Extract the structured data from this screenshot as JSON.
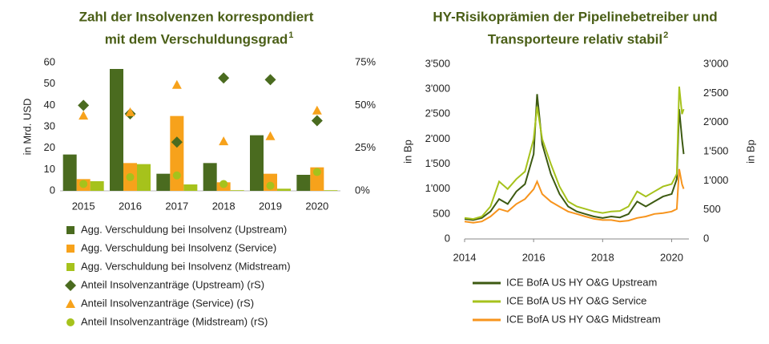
{
  "chart_data": [
    {
      "type": "bar",
      "title": [
        "Zahl der Insolvenzen korrespondiert",
        "mit dem Verschuldungsgrad"
      ],
      "title_footnote": "1",
      "ylabel": "in Mrd. USD",
      "categories": [
        "2015",
        "2016",
        "2017",
        "2018",
        "2019",
        "2020"
      ],
      "ylim": [
        0,
        60
      ],
      "yticks": [
        0,
        10,
        20,
        30,
        40,
        50,
        60
      ],
      "y2lim": [
        0,
        75
      ],
      "y2ticks": [
        {
          "value": 0,
          "label": "0%"
        },
        {
          "value": 25,
          "label": "25%"
        },
        {
          "value": 50,
          "label": "50%"
        },
        {
          "value": 75,
          "label": "75%"
        }
      ],
      "series": [
        {
          "name": "Agg. Verschuldung bei Insolvenz (Upstream)",
          "kind": "bar",
          "marker": "square",
          "color": "#4a6b1f",
          "values": [
            17,
            57,
            8,
            13,
            26,
            7.5
          ]
        },
        {
          "name": "Agg. Verschuldung bei Insolvenz (Service)",
          "kind": "bar",
          "marker": "square",
          "color": "#f7a21b",
          "values": [
            5.5,
            13,
            35,
            4,
            8,
            11
          ]
        },
        {
          "name": "Agg. Verschuldung bei Insolvenz (Midstream)",
          "kind": "bar",
          "marker": "square",
          "color": "#a6c21c",
          "values": [
            4.5,
            12.5,
            3,
            0.3,
            1,
            0.3
          ]
        },
        {
          "name": "Anteil Insolvenzanträge (Upstream) (rS)",
          "kind": "scatter",
          "marker": "diamond",
          "axis": "y2",
          "color": "#4a6b1f",
          "values": [
            50,
            45,
            28.5,
            66,
            65,
            41
          ]
        },
        {
          "name": "Anteil Insolvenzanträge (Service) (rS)",
          "kind": "scatter",
          "marker": "triangle",
          "axis": "y2",
          "color": "#f7a21b",
          "values": [
            44,
            46,
            62,
            29,
            32,
            47
          ]
        },
        {
          "name": "Anteil Insolvenzanträge (Midstream) (rS)",
          "kind": "scatter",
          "marker": "circle",
          "axis": "y2",
          "color": "#a6c21c",
          "values": [
            4,
            8,
            9,
            4,
            3,
            11
          ]
        }
      ]
    },
    {
      "type": "line",
      "title": [
        "HY-Risikoprämien der Pipelinebetreiber und",
        "Transporteure relativ stabil"
      ],
      "title_footnote": "2",
      "ylabel": "in Bp",
      "y2label": "in Bp",
      "xlim": [
        2014,
        2020.5
      ],
      "xticks": [
        2014,
        2016,
        2018,
        2020
      ],
      "ylim": [
        0,
        3500
      ],
      "yticks": [
        0,
        500,
        {
          "value": 1000,
          "label": "1'000"
        },
        {
          "value": 1500,
          "label": "1'500"
        },
        {
          "value": 2000,
          "label": "2'000"
        },
        {
          "value": 2500,
          "label": "2'500"
        },
        {
          "value": 3000,
          "label": "3'000"
        },
        {
          "value": 3500,
          "label": "3'500"
        }
      ],
      "y2lim": [
        0,
        3000
      ],
      "y2ticks": [
        0,
        500,
        {
          "value": 1000,
          "label": "1'000"
        },
        {
          "value": 1500,
          "label": "1'500"
        },
        {
          "value": 2000,
          "label": "2'000"
        },
        {
          "value": 2500,
          "label": "2'500"
        },
        {
          "value": 3000,
          "label": "3'000"
        }
      ],
      "x": [
        2014,
        2014.25,
        2014.5,
        2014.75,
        2015,
        2015.25,
        2015.5,
        2015.75,
        2016,
        2016.1,
        2016.25,
        2016.5,
        2016.75,
        2017,
        2017.25,
        2017.5,
        2017.75,
        2018,
        2018.25,
        2018.5,
        2018.75,
        2019,
        2019.25,
        2019.5,
        2019.75,
        2020,
        2020.15,
        2020.22,
        2020.3,
        2020.35
      ],
      "series": [
        {
          "name": "ICE BofA US HY O&G Upstream",
          "color": "#3d5a12",
          "values": [
            400,
            380,
            420,
            550,
            800,
            700,
            950,
            1100,
            1700,
            2900,
            1900,
            1300,
            900,
            650,
            550,
            500,
            450,
            420,
            450,
            430,
            500,
            750,
            650,
            750,
            850,
            900,
            1200,
            2600,
            2000,
            1700
          ]
        },
        {
          "name": "ICE BofA US HY O&G Service",
          "color": "#a6c21c",
          "values": [
            420,
            400,
            450,
            650,
            1150,
            1000,
            1200,
            1350,
            2000,
            2650,
            2000,
            1500,
            1050,
            750,
            650,
            600,
            550,
            520,
            550,
            560,
            650,
            950,
            850,
            950,
            1050,
            1100,
            1300,
            3050,
            2500,
            2600
          ]
        },
        {
          "name": "ICE BofA US HY O&G Midstream",
          "color": "#f7941d",
          "axis": "y2",
          "values": [
            300,
            280,
            300,
            385,
            515,
            470,
            600,
            685,
            855,
            985,
            770,
            640,
            555,
            470,
            430,
            385,
            345,
            325,
            325,
            300,
            315,
            360,
            385,
            430,
            445,
            470,
            515,
            1200,
            940,
            860
          ]
        }
      ]
    }
  ]
}
